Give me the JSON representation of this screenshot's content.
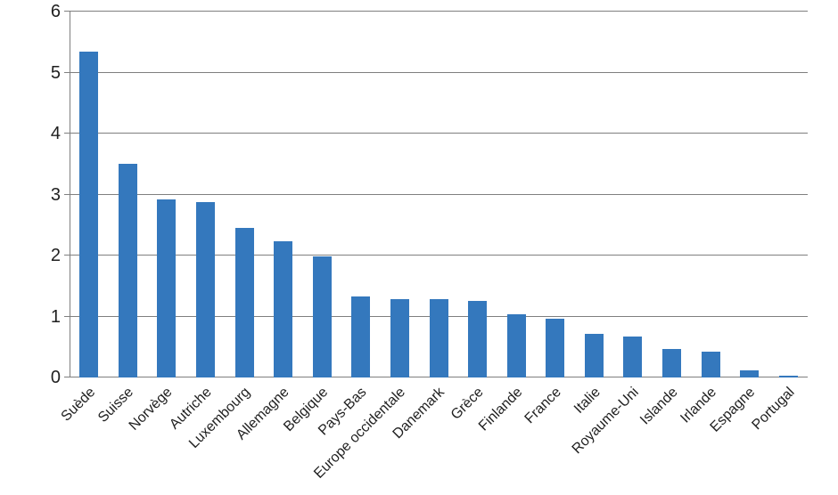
{
  "figure": {
    "background_color": "#ffffff"
  },
  "chart_data": {
    "type": "bar",
    "title": "",
    "xlabel": "",
    "ylabel": "",
    "categories": [
      "Suède",
      "Suisse",
      "Norvège",
      "Autriche",
      "Luxembourg",
      "Allemagne",
      "Belgique",
      "Pays-Bas",
      "Europe occidentale",
      "Danemark",
      "Grèce",
      "Finlande",
      "France",
      "Italie",
      "Royaume-Uni",
      "Islande",
      "Irlande",
      "Espagne",
      "Portugal"
    ],
    "values": [
      5.35,
      3.51,
      2.92,
      2.88,
      2.45,
      2.23,
      1.98,
      1.33,
      1.29,
      1.28,
      1.25,
      1.03,
      0.97,
      0.71,
      0.67,
      0.47,
      0.42,
      0.11,
      0.03
    ],
    "ylim": [
      0,
      6
    ],
    "yticks": [
      0,
      1,
      2,
      3,
      4,
      5,
      6
    ],
    "grid": true,
    "legend": false,
    "x_label_rotation_deg": 45,
    "bar_color": "#3478bd",
    "grid_color": "#7f7f7f",
    "axis_color": "#7f7f7f",
    "text_color": "#1f1f1f"
  }
}
